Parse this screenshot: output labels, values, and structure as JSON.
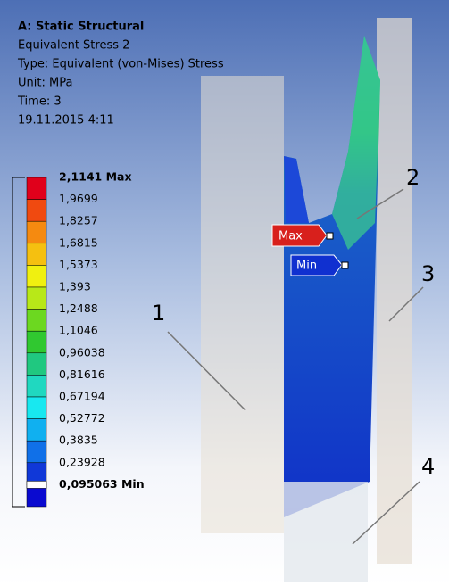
{
  "header": {
    "lines": [
      "A: Static Structural",
      "Equivalent Stress 2",
      "Type: Equivalent (von-Mises) Stress",
      "Unit: MPa",
      "Time: 3",
      "19.11.2015 4:11"
    ]
  },
  "legend": {
    "labels": [
      "2,1141 Max",
      "1,9699",
      "1,8257",
      "1,6815",
      "1,5373",
      "1,393",
      "1,2488",
      "1,1046",
      "0,96038",
      "0,81616",
      "0,67194",
      "0,52772",
      "0,3835",
      "0,23928",
      "0,095063 Min"
    ],
    "colors": [
      "#e0001b",
      "#f04a10",
      "#f58a10",
      "#f5c010",
      "#f0f010",
      "#b8e818",
      "#6cd820",
      "#30c830",
      "#20c880",
      "#20d8c0",
      "#18e8f0",
      "#10b0f0",
      "#1070e8",
      "#1038d8",
      "#0a0ad0",
      "#ffffff"
    ]
  },
  "markers": {
    "max": "Max",
    "min": "Min"
  },
  "callouts": [
    "1",
    "2",
    "3",
    "4"
  ]
}
